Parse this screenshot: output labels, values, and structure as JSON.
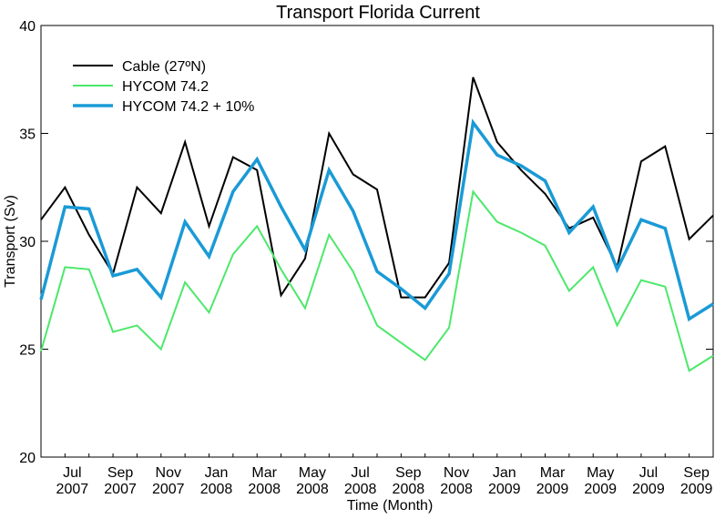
{
  "chart_data": {
    "type": "line",
    "title": "Transport Florida Current",
    "xlabel": "Time (Month)",
    "ylabel": "Transport (Sv)",
    "categories": [
      null,
      "Jul 2007",
      null,
      "Sep 2007",
      null,
      "Nov 2007",
      null,
      "Jan 2008",
      null,
      "Mar 2008",
      null,
      "May 2008",
      null,
      "Jul 2008",
      null,
      "Sep 2008",
      null,
      "Nov 2008",
      null,
      "Jan 2009",
      null,
      "Mar 2009",
      null,
      "May 2009",
      null,
      "Jul 2009",
      null,
      "Sep 2009",
      null
    ],
    "series": [
      {
        "name": "Cable (27ºN)",
        "color": "#000000",
        "width": 2,
        "values": [
          31.0,
          32.5,
          30.3,
          28.5,
          32.5,
          31.3,
          34.6,
          30.7,
          33.9,
          33.3,
          27.5,
          29.2,
          35.0,
          33.1,
          32.4,
          27.4,
          27.4,
          29.0,
          37.6,
          34.6,
          33.3,
          32.2,
          30.6,
          31.1,
          28.8,
          33.7,
          34.4,
          30.1,
          31.2
        ]
      },
      {
        "name": "HYCOM 74.2",
        "color": "#4ce86a",
        "width": 2,
        "values": [
          24.9,
          28.8,
          28.7,
          25.8,
          26.1,
          25.0,
          28.1,
          26.7,
          29.4,
          30.7,
          28.7,
          26.9,
          30.3,
          28.6,
          26.1,
          25.3,
          24.5,
          26.0,
          32.3,
          30.9,
          30.4,
          29.8,
          27.7,
          28.8,
          26.1,
          28.2,
          27.9,
          24.0,
          24.7
        ]
      },
      {
        "name": "HYCOM 74.2 + 10%",
        "color": "#1a9ad6",
        "width": 3.5,
        "values": [
          27.3,
          31.6,
          31.5,
          28.4,
          28.7,
          27.4,
          30.9,
          29.3,
          32.3,
          33.8,
          31.6,
          29.6,
          33.3,
          31.4,
          28.6,
          27.8,
          26.9,
          28.5,
          35.5,
          34.0,
          33.5,
          32.8,
          30.4,
          31.6,
          28.7,
          31.0,
          30.6,
          26.4,
          27.1
        ]
      }
    ],
    "ylim": [
      20,
      40
    ],
    "yticks": [
      20,
      25,
      30,
      35,
      40
    ]
  }
}
